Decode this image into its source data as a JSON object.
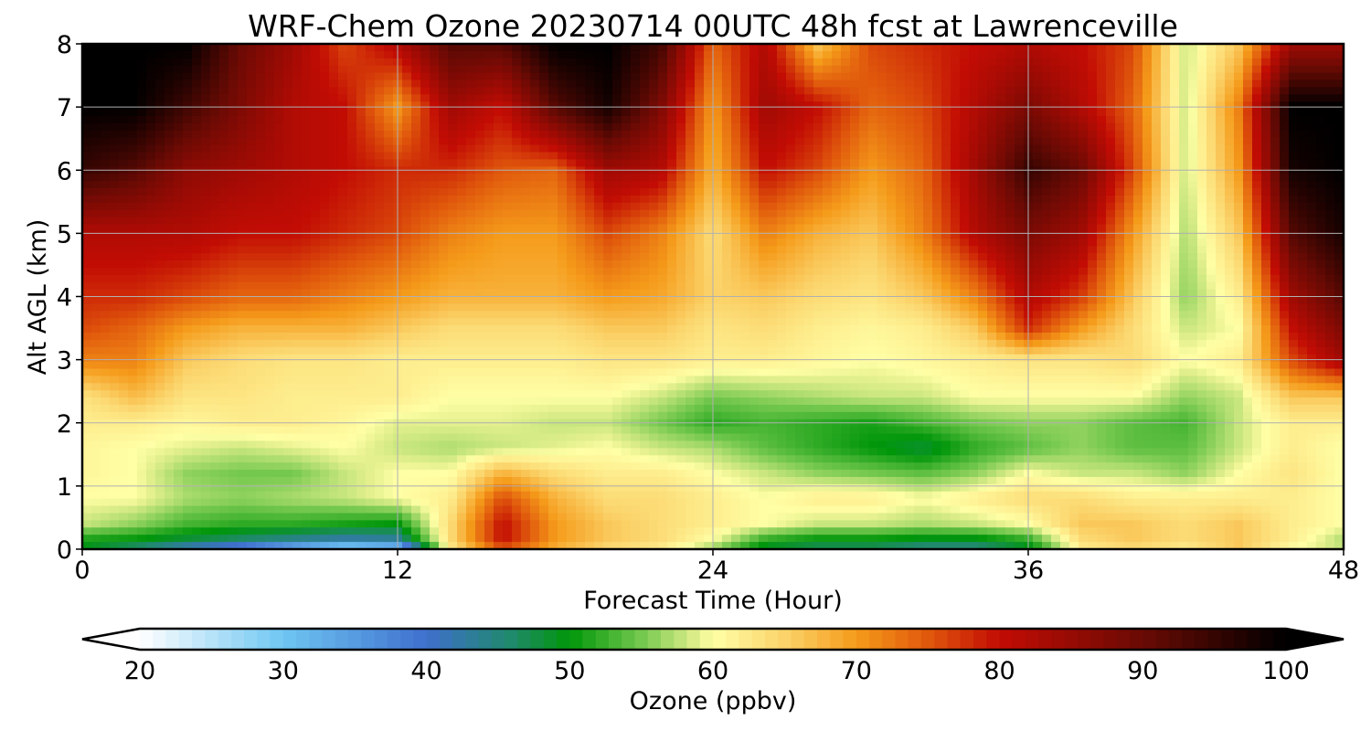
{
  "chart_data": {
    "type": "heatmap",
    "title": "WRF-Chem Ozone  20230714 00UTC 48h fcst at Lawrenceville",
    "xlabel": "Forecast Time (Hour)",
    "ylabel": "Alt AGL (km)",
    "xlim": [
      0,
      48
    ],
    "ylim": [
      0,
      8
    ],
    "xticks": [
      0,
      12,
      24,
      36,
      48
    ],
    "yticks": [
      0,
      1,
      2,
      3,
      4,
      5,
      6,
      7,
      8
    ],
    "grid": true,
    "colorbar": {
      "label": "Ozone  (ppbv)",
      "range": [
        20,
        100
      ],
      "ticks": [
        20,
        30,
        40,
        50,
        60,
        70,
        80,
        90,
        100
      ],
      "extend": "both",
      "orientation": "horizontal",
      "placement": "bottom"
    },
    "colormap": [
      [
        20,
        "#ffffff"
      ],
      [
        30,
        "#6ec6f2"
      ],
      [
        40,
        "#3f6fce"
      ],
      [
        46,
        "#1f8a6a"
      ],
      [
        50,
        "#00960a"
      ],
      [
        55,
        "#74c84e"
      ],
      [
        59,
        "#e4f08e"
      ],
      [
        60,
        "#ffffa6"
      ],
      [
        65,
        "#fbd36a"
      ],
      [
        70,
        "#f59b1a"
      ],
      [
        75,
        "#e0580c"
      ],
      [
        80,
        "#c20c04"
      ],
      [
        90,
        "#6a0a04"
      ],
      [
        100,
        "#000000"
      ]
    ],
    "x": [
      0,
      2,
      4,
      6,
      8,
      10,
      12,
      14,
      16,
      18,
      20,
      22,
      24,
      26,
      28,
      30,
      32,
      34,
      36,
      38,
      40,
      42,
      44,
      46,
      48
    ],
    "y": [
      0,
      0.15,
      0.4,
      0.8,
      1.2,
      1.6,
      2.0,
      2.4,
      3.0,
      3.5,
      4.0,
      5.0,
      6.0,
      7.0,
      8.0
    ],
    "z": [
      [
        49,
        45,
        40,
        36,
        30,
        25,
        28,
        62,
        75,
        68,
        64,
        62,
        56,
        48,
        46,
        46,
        44,
        44,
        48,
        62,
        64,
        62,
        66,
        60,
        58
      ],
      [
        51,
        50,
        48,
        46,
        44,
        42,
        43,
        64,
        80,
        70,
        66,
        64,
        60,
        52,
        50,
        50,
        49,
        49,
        52,
        64,
        66,
        64,
        66,
        62,
        57
      ],
      [
        58,
        56,
        53,
        52,
        52,
        51,
        50,
        64,
        80,
        70,
        66,
        64,
        62,
        60,
        58,
        58,
        57,
        58,
        60,
        66,
        66,
        64,
        66,
        62,
        60
      ],
      [
        60,
        60,
        57,
        56,
        57,
        58,
        60,
        62,
        76,
        68,
        64,
        64,
        62,
        60,
        62,
        62,
        60,
        62,
        64,
        64,
        62,
        62,
        62,
        62,
        60
      ],
      [
        61,
        60,
        56,
        55,
        55,
        58,
        60,
        60,
        68,
        64,
        62,
        62,
        60,
        58,
        56,
        55,
        54,
        56,
        60,
        58,
        58,
        56,
        60,
        63,
        60
      ],
      [
        61,
        60,
        59,
        58,
        59,
        60,
        58,
        57,
        58,
        59,
        60,
        58,
        57,
        54,
        52,
        50,
        48,
        52,
        54,
        56,
        54,
        54,
        58,
        62,
        60
      ],
      [
        62,
        62,
        61,
        62,
        62,
        61,
        59,
        59,
        59,
        58,
        58,
        55,
        52,
        53,
        52,
        51,
        53,
        55,
        56,
        56,
        54,
        53,
        58,
        62,
        62
      ],
      [
        63,
        67,
        63,
        63,
        62,
        62,
        62,
        60,
        60,
        60,
        60,
        58,
        55,
        56,
        57,
        58,
        58,
        60,
        60,
        60,
        60,
        56,
        58,
        66,
        66
      ],
      [
        72,
        72,
        66,
        64,
        63,
        63,
        62,
        62,
        62,
        62,
        63,
        63,
        62,
        62,
        61,
        60,
        61,
        62,
        63,
        63,
        64,
        60,
        62,
        76,
        84
      ],
      [
        76,
        74,
        70,
        68,
        68,
        68,
        66,
        64,
        64,
        64,
        66,
        66,
        63,
        64,
        62,
        61,
        62,
        66,
        78,
        70,
        64,
        58,
        60,
        80,
        88
      ],
      [
        78,
        78,
        76,
        74,
        74,
        72,
        70,
        68,
        68,
        68,
        70,
        69,
        65,
        66,
        64,
        63,
        66,
        72,
        82,
        77,
        66,
        56,
        62,
        84,
        92
      ],
      [
        82,
        82,
        82,
        80,
        80,
        78,
        76,
        72,
        70,
        70,
        76,
        72,
        64,
        72,
        68,
        66,
        72,
        82,
        88,
        84,
        70,
        57,
        66,
        92,
        98
      ],
      [
        95,
        92,
        86,
        84,
        82,
        80,
        78,
        78,
        75,
        74,
        84,
        82,
        68,
        80,
        76,
        70,
        74,
        84,
        95,
        90,
        76,
        58,
        70,
        98,
        100
      ],
      [
        100,
        100,
        94,
        88,
        82,
        80,
        70,
        84,
        80,
        92,
        98,
        88,
        70,
        84,
        80,
        74,
        76,
        82,
        88,
        82,
        74,
        58,
        72,
        100,
        100
      ],
      [
        100,
        100,
        100,
        90,
        84,
        76,
        82,
        92,
        92,
        100,
        100,
        94,
        74,
        82,
        66,
        76,
        78,
        80,
        82,
        80,
        76,
        58,
        66,
        84,
        84
      ]
    ]
  }
}
